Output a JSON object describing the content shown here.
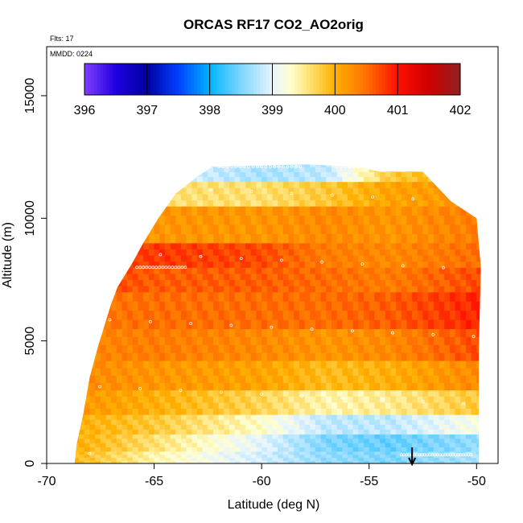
{
  "chart_data": {
    "type": "heatmap",
    "title": "ORCAS RF17 CO2_AO2orig",
    "flights_note": "Flts: 17",
    "date_note": "MMDD: 0224",
    "xlabel": "Latitude (deg N)",
    "ylabel": "Altitude (m)",
    "xlim": [
      -70,
      -49
    ],
    "ylim": [
      0,
      17000
    ],
    "xticks": [
      -70,
      -65,
      -60,
      -55,
      -50
    ],
    "yticks": [
      0,
      5000,
      10000,
      15000
    ],
    "colorbar": {
      "ticks": [
        396,
        397,
        398,
        399,
        400,
        401,
        402
      ],
      "range": [
        396,
        402
      ],
      "stops": [
        {
          "value": 396.0,
          "color": "#7f3fff"
        },
        {
          "value": 396.5,
          "color": "#2000e0"
        },
        {
          "value": 397.0,
          "color": "#0000a0"
        },
        {
          "value": 397.5,
          "color": "#0040ff"
        },
        {
          "value": 398.0,
          "color": "#00b4ff"
        },
        {
          "value": 398.5,
          "color": "#7fd6ff"
        },
        {
          "value": 399.0,
          "color": "#e6f4ff"
        },
        {
          "value": 399.3,
          "color": "#ffffd0"
        },
        {
          "value": 399.6,
          "color": "#ffe070"
        },
        {
          "value": 400.0,
          "color": "#ffb000"
        },
        {
          "value": 400.5,
          "color": "#ff7000"
        },
        {
          "value": 401.0,
          "color": "#ff1000"
        },
        {
          "value": 401.5,
          "color": "#d00000"
        },
        {
          "value": 402.0,
          "color": "#902020"
        }
      ]
    },
    "curtain_outline": [
      [
        -68.7,
        0
      ],
      [
        -68.6,
        800
      ],
      [
        -68.3,
        2000
      ],
      [
        -68.0,
        3500
      ],
      [
        -67.6,
        4800
      ],
      [
        -67.0,
        6500
      ],
      [
        -66.7,
        7200
      ],
      [
        -66.0,
        8200
      ],
      [
        -65.5,
        9000
      ],
      [
        -64.8,
        10000
      ],
      [
        -64.0,
        11000
      ],
      [
        -63.0,
        11700
      ],
      [
        -62.3,
        12100
      ],
      [
        -58.0,
        12200
      ],
      [
        -55.5,
        12100
      ],
      [
        -54.5,
        11900
      ],
      [
        -52.5,
        11900
      ],
      [
        -51.2,
        10700
      ],
      [
        -50.0,
        10000
      ],
      [
        -49.8,
        8000
      ],
      [
        -49.9,
        4500
      ],
      [
        -49.9,
        1200
      ],
      [
        -49.9,
        0
      ]
    ],
    "layers": [
      {
        "alt_min": 0,
        "alt_max": 500,
        "values_at_lat": [
          [
            -68.5,
            399.9
          ],
          [
            -65,
            399.4
          ],
          [
            -60,
            398.9
          ],
          [
            -57,
            398.6
          ],
          [
            -54,
            398.5
          ],
          [
            -50,
            398.7
          ]
        ]
      },
      {
        "alt_min": 500,
        "alt_max": 1200,
        "values_at_lat": [
          [
            -68.5,
            400.0
          ],
          [
            -65,
            399.6
          ],
          [
            -60,
            399.0
          ],
          [
            -57,
            398.5
          ],
          [
            -54,
            398.4
          ],
          [
            -50,
            398.6
          ]
        ]
      },
      {
        "alt_min": 1200,
        "alt_max": 2000,
        "values_at_lat": [
          [
            -68.5,
            400.0
          ],
          [
            -65,
            399.8
          ],
          [
            -60,
            399.3
          ],
          [
            -57,
            398.8
          ],
          [
            -54,
            398.8
          ],
          [
            -50,
            399.2
          ]
        ]
      },
      {
        "alt_min": 2000,
        "alt_max": 3000,
        "values_at_lat": [
          [
            -68.5,
            400.2
          ],
          [
            -65,
            400.0
          ],
          [
            -60,
            399.7
          ],
          [
            -57,
            399.4
          ],
          [
            -54,
            399.5
          ],
          [
            -50,
            399.8
          ]
        ]
      },
      {
        "alt_min": 3000,
        "alt_max": 4200,
        "values_at_lat": [
          [
            -68.5,
            400.3
          ],
          [
            -65,
            400.2
          ],
          [
            -60,
            400.1
          ],
          [
            -57,
            399.9
          ],
          [
            -54,
            400.0
          ],
          [
            -50,
            400.3
          ]
        ]
      },
      {
        "alt_min": 4200,
        "alt_max": 5500,
        "values_at_lat": [
          [
            -68.5,
            400.3
          ],
          [
            -65,
            400.4
          ],
          [
            -60,
            400.3
          ],
          [
            -57,
            400.2
          ],
          [
            -54,
            400.3
          ],
          [
            -50,
            400.7
          ]
        ]
      },
      {
        "alt_min": 5500,
        "alt_max": 7000,
        "values_at_lat": [
          [
            -68.5,
            400.4
          ],
          [
            -65,
            400.5
          ],
          [
            -60,
            400.5
          ],
          [
            -57,
            400.5
          ],
          [
            -54,
            400.6
          ],
          [
            -50,
            400.9
          ]
        ]
      },
      {
        "alt_min": 7000,
        "alt_max": 8000,
        "values_at_lat": [
          [
            -68.5,
            400.8
          ],
          [
            -65,
            400.6
          ],
          [
            -60,
            400.6
          ],
          [
            -57,
            400.5
          ],
          [
            -54,
            400.4
          ],
          [
            -50,
            400.7
          ]
        ]
      },
      {
        "alt_min": 8000,
        "alt_max": 9000,
        "values_at_lat": [
          [
            -68.5,
            400.5
          ],
          [
            -65,
            400.8
          ],
          [
            -60,
            400.7
          ],
          [
            -57,
            400.4
          ],
          [
            -54,
            400.3
          ],
          [
            -50,
            400.5
          ]
        ]
      },
      {
        "alt_min": 9000,
        "alt_max": 10500,
        "values_at_lat": [
          [
            -68.5,
            400.2
          ],
          [
            -65,
            400.2
          ],
          [
            -60,
            400.2
          ],
          [
            -57,
            400.3
          ],
          [
            -54,
            400.2
          ],
          [
            -50,
            400.4
          ]
        ]
      },
      {
        "alt_min": 10500,
        "alt_max": 11500,
        "values_at_lat": [
          [
            -68.5,
            399.5
          ],
          [
            -65,
            399.6
          ],
          [
            -60,
            399.6
          ],
          [
            -57,
            399.8
          ],
          [
            -54,
            400.1
          ],
          [
            -50,
            400.2
          ]
        ]
      },
      {
        "alt_min": 11500,
        "alt_max": 12300,
        "values_at_lat": [
          [
            -68.5,
            399.0
          ],
          [
            -65,
            399.0
          ],
          [
            -60,
            398.7
          ],
          [
            -57,
            398.8
          ],
          [
            -54,
            399.8
          ],
          [
            -50,
            400.0
          ]
        ]
      }
    ],
    "marker_arrow_lat": -53
  }
}
